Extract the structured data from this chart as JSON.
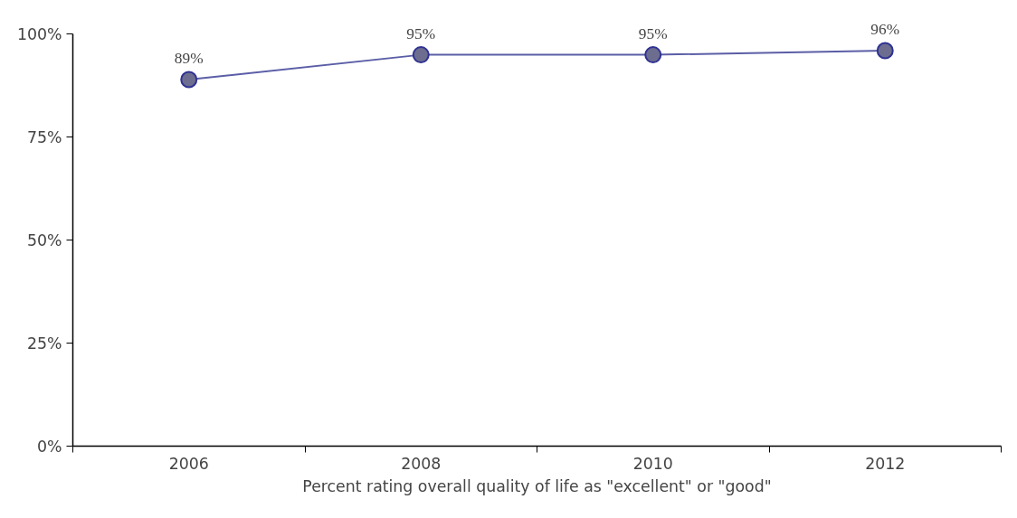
{
  "chart_data": {
    "type": "line",
    "xlabel": "Percent rating overall quality of life as \"excellent\" or \"good\"",
    "categories": [
      "2006",
      "2008",
      "2010",
      "2012"
    ],
    "series": [
      {
        "color": "#5b5ea6",
        "values": [
          89,
          95,
          95,
          96
        ],
        "value_labels": [
          "89%",
          "95%",
          "95%",
          "96%"
        ]
      }
    ],
    "ylim": [
      0,
      100
    ],
    "yticks": [
      {
        "value": 0,
        "label": "0%"
      },
      {
        "value": 25,
        "label": "25%"
      },
      {
        "value": 50,
        "label": "50%"
      },
      {
        "value": 75,
        "label": "75%"
      },
      {
        "value": 100,
        "label": "100%"
      }
    ],
    "marker": "circle",
    "grid": false
  }
}
